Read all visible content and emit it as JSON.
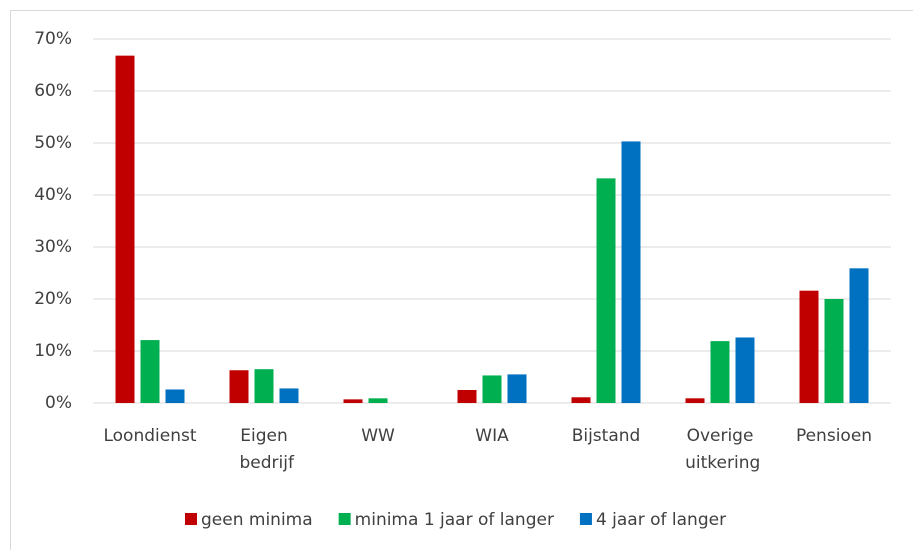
{
  "chart_data": {
    "type": "bar",
    "categories": [
      "Loondienst",
      "Eigen bedrijf",
      "WW",
      "WIA",
      "Bijstand",
      "Overige uitkering",
      "Pensioen"
    ],
    "series": [
      {
        "name": "geen minima",
        "color": "#c00000",
        "values": [
          66.8,
          6.3,
          0.7,
          2.5,
          1.1,
          0.9,
          21.6
        ]
      },
      {
        "name": "minima 1 jaar of langer",
        "color": "#00b050",
        "values": [
          12.1,
          6.5,
          0.9,
          5.3,
          43.2,
          11.9,
          20.0
        ]
      },
      {
        "name": "4 jaar of langer",
        "color": "#0070c0",
        "values": [
          2.6,
          2.8,
          0,
          5.5,
          50.3,
          12.6,
          25.9
        ]
      }
    ],
    "ylim": [
      0,
      70
    ],
    "yticks": [
      {
        "value": 0,
        "label": "0%"
      },
      {
        "value": 10,
        "label": "10%"
      },
      {
        "value": 20,
        "label": "20%"
      },
      {
        "value": 30,
        "label": "30%"
      },
      {
        "value": 40,
        "label": "40%"
      },
      {
        "value": 50,
        "label": "50%"
      },
      {
        "value": 60,
        "label": "60%"
      },
      {
        "value": 70,
        "label": "70%"
      }
    ],
    "grid": true,
    "legend": "bottom"
  }
}
